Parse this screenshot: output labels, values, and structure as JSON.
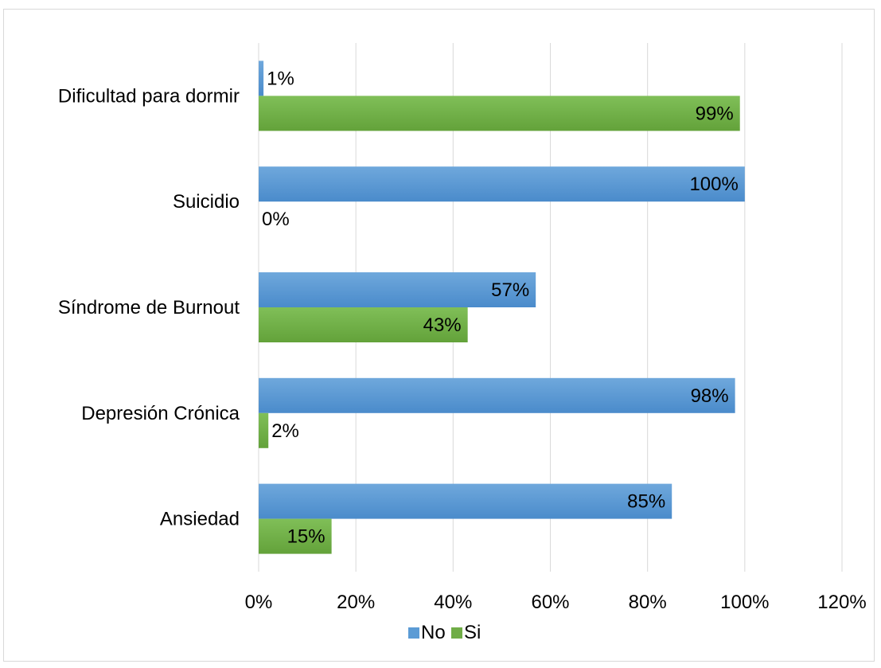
{
  "chart_data": {
    "type": "bar",
    "orientation": "horizontal",
    "categories": [
      "Dificultad para dormir",
      "Suicidio",
      "Síndrome de Burnout",
      "Depresión Crónica",
      "Ansiedad"
    ],
    "series": [
      {
        "name": "No",
        "color": "#5b9bd5",
        "values": [
          0.01,
          1.0,
          0.57,
          0.98,
          0.85
        ],
        "labels": [
          "1%",
          "100%",
          "57%",
          "98%",
          "85%"
        ]
      },
      {
        "name": "Si",
        "color": "#70ad47",
        "values": [
          0.99,
          0.0,
          0.43,
          0.02,
          0.15
        ],
        "labels": [
          "99%",
          "0%",
          "43%",
          "2%",
          "15%"
        ]
      }
    ],
    "xlim": [
      0,
      1.2
    ],
    "x_ticks": [
      0,
      0.2,
      0.4,
      0.6,
      0.8,
      1.0,
      1.2
    ],
    "x_tick_labels": [
      "0%",
      "20%",
      "40%",
      "60%",
      "80%",
      "100%",
      "120%"
    ],
    "grid": "vertical",
    "legend": "bottom",
    "colors": {
      "No": "#5b9bd5",
      "Si": "#70ad47",
      "grid": "#d9d9d9",
      "border": "#d9d9d9"
    }
  }
}
